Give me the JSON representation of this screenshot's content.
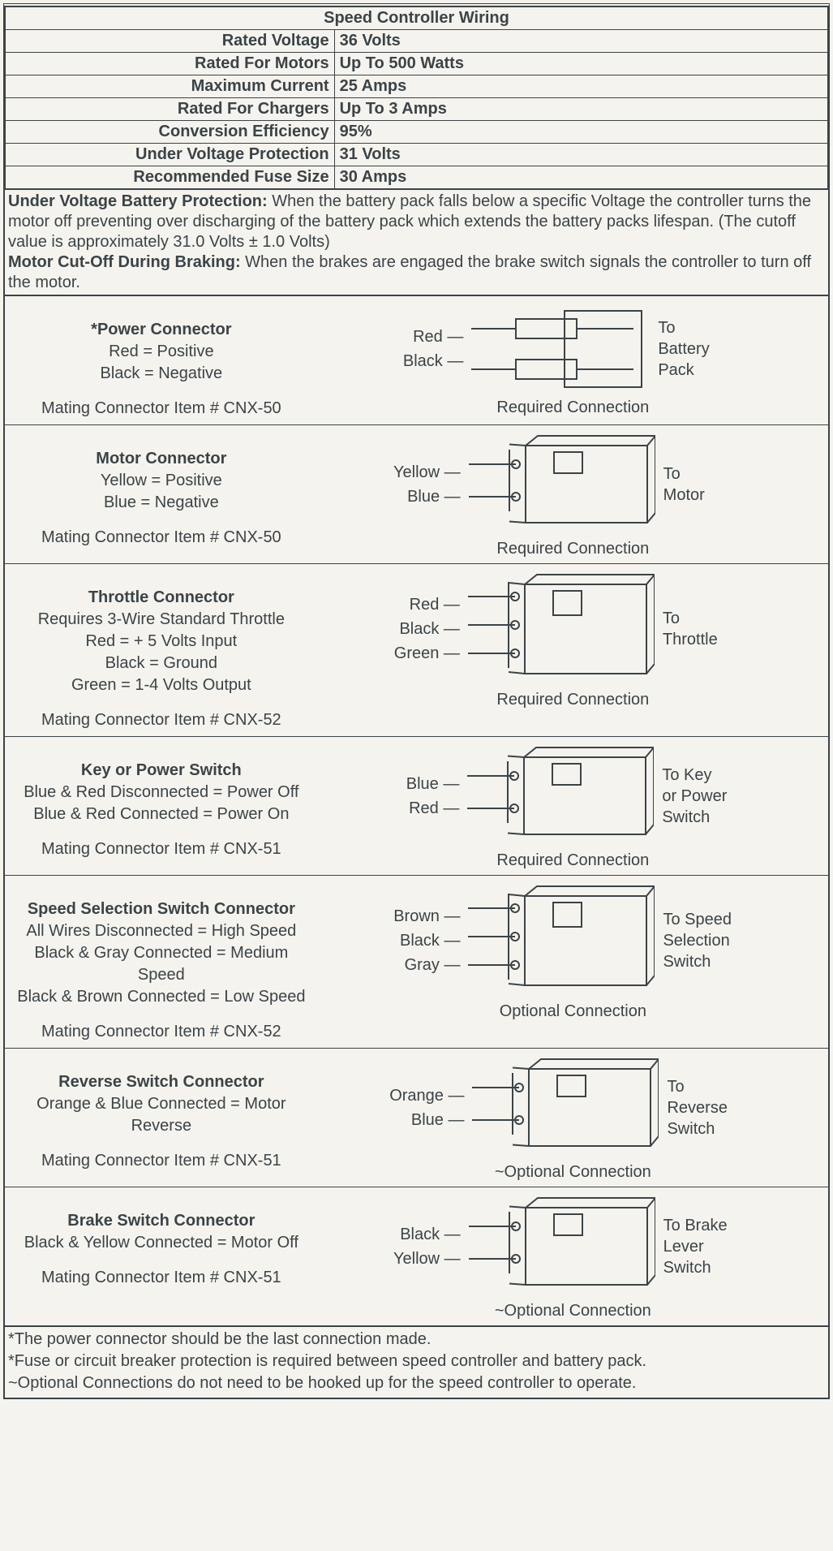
{
  "title": "Speed Controller  Wiring",
  "specs": [
    {
      "k": "Rated Voltage",
      "v": "36 Volts"
    },
    {
      "k": "Rated For Motors",
      "v": "Up To 500 Watts"
    },
    {
      "k": "Maximum Current",
      "v": "25 Amps"
    },
    {
      "k": "Rated For Chargers",
      "v": "Up To 3 Amps"
    },
    {
      "k": "Conversion Efficiency",
      "v": "95%"
    },
    {
      "k": "Under Voltage Protection",
      "v": "31 Volts"
    },
    {
      "k": "Recommended Fuse Size",
      "v": "30 Amps"
    }
  ],
  "notes": {
    "uvp_label": "Under Voltage Battery Protection:",
    "uvp_text": " When the battery pack falls below a specific Voltage the controller turns the motor off preventing over discharging of the battery pack which extends the battery packs lifespan. (The cutoff value is approximately 31.0 Volts ± 1.0 Volts)",
    "mco_label": "Motor Cut-Off During Braking:",
    "mco_text": " When the brakes are engaged the brake switch signals the controller to turn off the motor."
  },
  "connectors": [
    {
      "header": "*Power Connector",
      "lines": [
        "Red = Positive",
        "Black = Negative"
      ],
      "mating": "Mating Connector Item # CNX-50",
      "wires": [
        "Red",
        "Black"
      ],
      "dest": [
        "To",
        "Battery",
        "Pack"
      ],
      "caption": "Required Connection",
      "shape": "power"
    },
    {
      "header": "Motor Connector",
      "lines": [
        "Yellow = Positive",
        "Blue = Negative"
      ],
      "mating": "Mating Connector Item # CNX-50",
      "wires": [
        "Yellow",
        "Blue"
      ],
      "dest": [
        "To",
        "Motor"
      ],
      "caption": "Required Connection",
      "shape": "plug2"
    },
    {
      "header": "Throttle Connector",
      "lines": [
        "Requires 3-Wire Standard Throttle",
        "Red = + 5 Volts Input",
        "Black = Ground",
        "Green = 1-4 Volts Output"
      ],
      "mating": "Mating Connector Item # CNX-52",
      "wires": [
        "Red",
        "Black",
        "Green"
      ],
      "dest": [
        "To",
        "Throttle"
      ],
      "caption": "Required Connection",
      "shape": "plug3"
    },
    {
      "header": "Key or Power Switch",
      "lines": [
        "Blue & Red Disconnected = Power Off",
        "Blue & Red Connected = Power On"
      ],
      "mating": "Mating Connector Item # CNX-51",
      "wires": [
        "Blue",
        "Red"
      ],
      "dest": [
        "To Key",
        "or Power",
        "Switch"
      ],
      "caption": "Required Connection",
      "shape": "plug2"
    },
    {
      "header": "Speed Selection Switch Connector",
      "lines": [
        "All Wires Disconnected = High Speed",
        "Black & Gray Connected = Medium Speed",
        "Black & Brown Connected = Low Speed"
      ],
      "mating": "Mating Connector Item # CNX-52",
      "wires": [
        "Brown",
        "Black",
        "Gray"
      ],
      "dest": [
        "To Speed",
        "Selection",
        "Switch"
      ],
      "caption": "Optional Connection",
      "shape": "plug3"
    },
    {
      "header": "Reverse Switch Connector",
      "lines": [
        "Orange & Blue Connected = Motor Reverse"
      ],
      "mating": "Mating Connector Item # CNX-51",
      "wires": [
        "Orange",
        "Blue"
      ],
      "dest": [
        "To",
        "Reverse",
        "Switch"
      ],
      "caption": "~Optional Connection",
      "shape": "plug2"
    },
    {
      "header": "Brake Switch Connector",
      "lines": [
        "Black & Yellow Connected = Motor Off"
      ],
      "mating": "Mating Connector Item # CNX-51",
      "wires": [
        "Black",
        "Yellow"
      ],
      "dest": [
        "To Brake",
        "Lever",
        "Switch"
      ],
      "caption": "~Optional Connection",
      "shape": "plug2"
    }
  ],
  "footnotes": [
    "*The power connector should be the last connection made.",
    "*Fuse or circuit breaker protection is required between speed controller and battery pack.",
    "~Optional Connections do not need to be hooked up for the speed controller to operate."
  ],
  "style": {
    "stroke": "#3a4448",
    "bg": "#f5f3ed"
  }
}
